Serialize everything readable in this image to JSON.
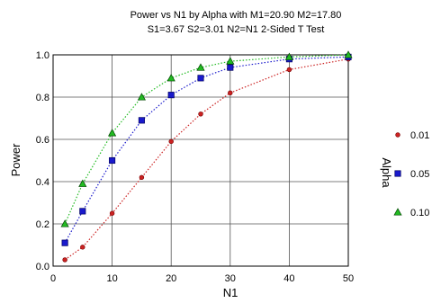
{
  "chart_data": {
    "type": "line",
    "title_line1": "Power vs N1 by Alpha with M1=20.90 M2=17.80",
    "title_line2": "S1=3.67 S2=3.01 N2=N1 2-Sided T Test",
    "xlabel": "N1",
    "ylabel": "Power",
    "xlim": [
      0,
      50
    ],
    "ylim": [
      0,
      1
    ],
    "x_ticks": [
      "0",
      "10",
      "20",
      "30",
      "40",
      "50"
    ],
    "y_ticks": [
      "0.0",
      "0.2",
      "0.4",
      "0.6",
      "0.8",
      "1.0"
    ],
    "grid": true,
    "legend_title": "Alpha",
    "legend_position": "right",
    "x": [
      2,
      5,
      10,
      15,
      20,
      25,
      30,
      40,
      50
    ],
    "series": [
      {
        "name": "0.01",
        "color": "#cc2222",
        "marker": "circle",
        "values": [
          0.03,
          0.09,
          0.25,
          0.42,
          0.59,
          0.72,
          0.82,
          0.93,
          0.98
        ]
      },
      {
        "name": "0.05",
        "color": "#1a1acc",
        "marker": "square",
        "values": [
          0.11,
          0.26,
          0.5,
          0.69,
          0.81,
          0.89,
          0.94,
          0.98,
          0.99
        ]
      },
      {
        "name": "0.10",
        "color": "#22bb22",
        "marker": "triangle",
        "values": [
          0.2,
          0.39,
          0.63,
          0.8,
          0.89,
          0.94,
          0.97,
          0.99,
          1.0
        ]
      }
    ]
  }
}
